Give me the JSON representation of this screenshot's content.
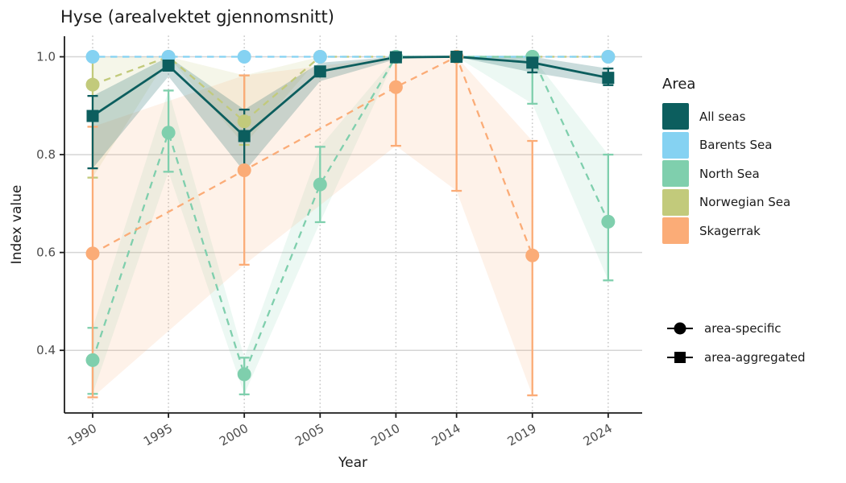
{
  "chart_data": {
    "type": "line",
    "title": "Hyse (arealvektet gjennomsnitt)",
    "xlabel": "Year",
    "ylabel": "Index value",
    "legend_title": "Area",
    "legend_position": "right",
    "xlim": [
      1988.14,
      2026.24
    ],
    "ylim": [
      0.272,
      1.042
    ],
    "x_ticks": [
      {
        "value": 1990,
        "label": "1990"
      },
      {
        "value": 1995,
        "label": "1995"
      },
      {
        "value": 2000,
        "label": "2000"
      },
      {
        "value": 2005,
        "label": "2005"
      },
      {
        "value": 2010,
        "label": "2010"
      },
      {
        "value": 2014,
        "label": "2014"
      },
      {
        "value": 2019,
        "label": "2019"
      },
      {
        "value": 2024,
        "label": "2024"
      }
    ],
    "y_ticks": [
      {
        "value": 0.4,
        "label": "0.4"
      },
      {
        "value": 0.6,
        "label": "0.6"
      },
      {
        "value": 0.8,
        "label": "0.8"
      },
      {
        "value": 1.0,
        "label": "1.0"
      }
    ],
    "series": [
      {
        "name": "All seas",
        "color": "#0c5e5e",
        "line": "solid",
        "marker": "square",
        "z": 4,
        "ribbon_opacity": 0.22,
        "dash_offset": 0,
        "points": [
          {
            "x": 1990,
            "y": 0.879,
            "lo": 0.772,
            "hi": 0.92,
            "bar": true
          },
          {
            "x": 1995,
            "y": 0.982,
            "lo": 0.96,
            "hi": 1.0,
            "bar": false
          },
          {
            "x": 2000,
            "y": 0.838,
            "lo": 0.765,
            "hi": 0.892,
            "bar": true
          },
          {
            "x": 2005,
            "y": 0.97,
            "lo": 0.95,
            "hi": 0.988,
            "bar": false
          },
          {
            "x": 2010,
            "y": 0.999,
            "lo": 0.995,
            "hi": 1.0,
            "bar": false
          },
          {
            "x": 2014,
            "y": 1.0,
            "lo": 1.0,
            "hi": 1.0,
            "bar": false
          },
          {
            "x": 2019,
            "y": 0.988,
            "lo": 0.968,
            "hi": 1.0,
            "bar": true
          },
          {
            "x": 2024,
            "y": 0.957,
            "lo": 0.942,
            "hi": 0.976,
            "bar": true
          }
        ]
      },
      {
        "name": "Barents Sea",
        "color": "#85d2f2",
        "line": "dashed",
        "marker": "circle",
        "z": 1,
        "ribbon_opacity": 0,
        "dash_offset": 8,
        "points": [
          {
            "x": 1990,
            "y": 1.0,
            "bar": false
          },
          {
            "x": 1995,
            "y": 1.0,
            "bar": false
          },
          {
            "x": 2000,
            "y": 1.0,
            "bar": false
          },
          {
            "x": 2005,
            "y": 1.0,
            "bar": false
          },
          {
            "x": 2010,
            "y": 1.0,
            "bar": false
          },
          {
            "x": 2014,
            "y": 1.0,
            "bar": false
          },
          {
            "x": 2019,
            "y": 1.0,
            "bar": false
          },
          {
            "x": 2024,
            "y": 1.0,
            "bar": false
          }
        ]
      },
      {
        "name": "North Sea",
        "color": "#7fcfad",
        "line": "dashed",
        "marker": "circle",
        "z": 2,
        "ribbon_opacity": 0.15,
        "dash_offset": 0,
        "points": [
          {
            "x": 1990,
            "y": 0.38,
            "lo": 0.311,
            "hi": 0.446,
            "bar": true
          },
          {
            "x": 1995,
            "y": 0.845,
            "lo": 0.765,
            "hi": 0.931,
            "bar": true
          },
          {
            "x": 2000,
            "y": 0.351,
            "lo": 0.31,
            "hi": 0.385,
            "bar": true
          },
          {
            "x": 2005,
            "y": 0.739,
            "lo": 0.662,
            "hi": 0.816,
            "bar": true
          },
          {
            "x": 2010,
            "y": 1.0,
            "lo": 1.0,
            "hi": 1.0,
            "bar": false
          },
          {
            "x": 2014,
            "y": 1.0,
            "lo": 1.0,
            "hi": 1.0,
            "bar": false
          },
          {
            "x": 2019,
            "y": 1.0,
            "lo": 0.904,
            "hi": 1.0,
            "bar": true
          },
          {
            "x": 2024,
            "y": 0.663,
            "lo": 0.543,
            "hi": 0.8,
            "bar": true
          }
        ]
      },
      {
        "name": "Norwegian Sea",
        "color": "#c2ca7b",
        "line": "dashed",
        "marker": "circle",
        "z": 0,
        "ribbon_opacity": 0.17,
        "dash_offset": 0,
        "points": [
          {
            "x": 1990,
            "y": 0.943,
            "lo": 0.753,
            "hi": 1.0,
            "bar": true
          },
          {
            "x": 1995,
            "y": 1.0,
            "lo": 1.0,
            "hi": 1.0,
            "bar": false
          },
          {
            "x": 2000,
            "y": 0.868,
            "lo": 0.82,
            "hi": 0.962,
            "bar": true
          },
          {
            "x": 2005,
            "y": 1.0,
            "lo": 1.0,
            "hi": 1.0,
            "bar": false
          },
          {
            "x": 2010,
            "y": 1.0,
            "lo": 1.0,
            "hi": 1.0,
            "bar": false
          },
          {
            "x": 2014,
            "y": 1.0,
            "lo": 1.0,
            "hi": 1.0,
            "bar": false
          },
          {
            "x": 2019,
            "y": 1.0,
            "lo": 1.0,
            "hi": 1.0,
            "bar": false
          },
          {
            "x": 2024,
            "y": 1.0,
            "lo": 1.0,
            "hi": 1.0,
            "bar": false
          }
        ]
      },
      {
        "name": "Skagerrak",
        "color": "#fbac77",
        "line": "dashed",
        "marker": "circle",
        "z": 3,
        "ribbon_opacity": 0.16,
        "dash_offset": 0,
        "points": [
          {
            "x": 1990,
            "y": 0.598,
            "lo": 0.304,
            "hi": 0.857,
            "bar": true
          },
          {
            "x": 2000,
            "y": 0.768,
            "lo": 0.575,
            "hi": 0.962,
            "bar": true
          },
          {
            "x": 2010,
            "y": 0.938,
            "lo": 0.818,
            "hi": 1.0,
            "bar": true
          },
          {
            "x": 2014,
            "y": 1.0,
            "lo": 0.726,
            "hi": 1.0,
            "bar": true
          },
          {
            "x": 2019,
            "y": 0.594,
            "lo": 0.308,
            "hi": 0.828,
            "bar": true
          }
        ]
      }
    ],
    "shape_legend": [
      {
        "label": "area-specific",
        "marker": "circle"
      },
      {
        "label": "area-aggregated",
        "marker": "square"
      }
    ],
    "style": {
      "grid_color": "#d5d5d5",
      "minor_grid_color": "#c9c9c9",
      "axis_color": "#1c1c1c",
      "tick_text_color": "#4d4d4d"
    }
  }
}
